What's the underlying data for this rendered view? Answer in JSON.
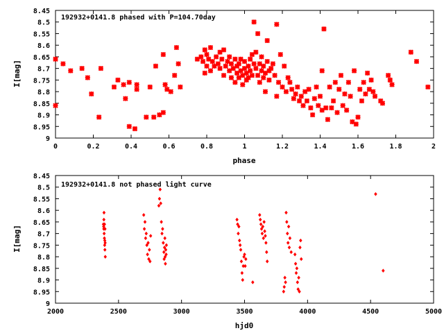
{
  "chart_data": [
    {
      "type": "scatter",
      "title": "192932+0141.8 phased with P=104.70day",
      "xlabel": "phase",
      "ylabel": "I[mag]",
      "xlim": [
        0,
        2
      ],
      "ylim": [
        9,
        8.45
      ],
      "x_ticks": [
        "0",
        "0.2",
        "0.4",
        "0.6",
        "0.8",
        "1",
        "1.2",
        "1.4",
        "1.6",
        "1.8",
        "2"
      ],
      "y_ticks": [
        "8.45",
        "8.5",
        "8.55",
        "8.6",
        "8.65",
        "8.7",
        "8.75",
        "8.8",
        "8.85",
        "8.9",
        "8.95",
        "9"
      ],
      "marker_color": "#ff0000",
      "grid": false,
      "series": [
        {
          "points": [
            [
              0.0,
              8.66
            ],
            [
              0.0,
              8.86
            ],
            [
              0.04,
              8.68
            ],
            [
              0.08,
              8.71
            ],
            [
              0.14,
              8.7
            ],
            [
              0.17,
              8.74
            ],
            [
              0.19,
              8.81
            ],
            [
              0.23,
              8.91
            ],
            [
              0.24,
              8.7
            ],
            [
              0.31,
              8.78
            ],
            [
              0.33,
              8.75
            ],
            [
              0.36,
              8.77
            ],
            [
              0.37,
              8.83
            ],
            [
              0.39,
              8.76
            ],
            [
              0.39,
              8.95
            ],
            [
              0.42,
              8.96
            ],
            [
              0.43,
              8.79
            ],
            [
              0.43,
              8.77
            ],
            [
              0.48,
              8.91
            ],
            [
              0.5,
              8.78
            ],
            [
              0.52,
              8.91
            ],
            [
              0.53,
              8.69
            ],
            [
              0.55,
              8.9
            ],
            [
              0.57,
              8.89
            ],
            [
              0.57,
              8.64
            ],
            [
              0.58,
              8.77
            ],
            [
              0.59,
              8.79
            ],
            [
              0.61,
              8.8
            ],
            [
              0.63,
              8.73
            ],
            [
              0.64,
              8.61
            ],
            [
              0.65,
              8.68
            ],
            [
              0.66,
              8.78
            ],
            [
              0.75,
              8.66
            ],
            [
              0.77,
              8.65
            ],
            [
              0.78,
              8.67
            ],
            [
              0.79,
              8.72
            ],
            [
              0.79,
              8.62
            ],
            [
              0.8,
              8.69
            ],
            [
              0.8,
              8.64
            ],
            [
              0.81,
              8.66
            ],
            [
              0.82,
              8.61
            ],
            [
              0.82,
              8.71
            ],
            [
              0.83,
              8.67
            ],
            [
              0.84,
              8.69
            ],
            [
              0.85,
              8.65
            ],
            [
              0.86,
              8.68
            ],
            [
              0.87,
              8.63
            ],
            [
              0.87,
              8.7
            ],
            [
              0.88,
              8.66
            ],
            [
              0.89,
              8.62
            ],
            [
              0.89,
              8.73
            ],
            [
              0.9,
              8.69
            ],
            [
              0.91,
              8.67
            ],
            [
              0.92,
              8.71
            ],
            [
              0.92,
              8.65
            ],
            [
              0.93,
              8.74
            ],
            [
              0.93,
              8.68
            ],
            [
              0.94,
              8.7
            ],
            [
              0.95,
              8.66
            ],
            [
              0.95,
              8.76
            ],
            [
              0.96,
              8.72
            ],
            [
              0.96,
              8.69
            ],
            [
              0.97,
              8.74
            ],
            [
              0.97,
              8.68
            ],
            [
              0.98,
              8.71
            ],
            [
              0.98,
              8.66
            ],
            [
              0.99,
              8.73
            ],
            [
              0.99,
              8.77
            ],
            [
              1.0,
              8.7
            ],
            [
              1.0,
              8.67
            ],
            [
              1.01,
              8.72
            ],
            [
              1.01,
              8.75
            ],
            [
              1.02,
              8.69
            ],
            [
              1.02,
              8.74
            ],
            [
              1.03,
              8.66
            ],
            [
              1.03,
              8.71
            ],
            [
              1.04,
              8.64
            ],
            [
              1.04,
              8.73
            ],
            [
              1.05,
              8.68
            ],
            [
              1.05,
              8.5
            ],
            [
              1.06,
              8.63
            ],
            [
              1.06,
              8.7
            ],
            [
              1.07,
              8.73
            ],
            [
              1.07,
              8.55
            ],
            [
              1.08,
              8.68
            ],
            [
              1.08,
              8.76
            ],
            [
              1.09,
              8.71
            ],
            [
              1.09,
              8.65
            ],
            [
              1.1,
              8.74
            ],
            [
              1.1,
              8.69
            ],
            [
              1.11,
              8.72
            ],
            [
              1.11,
              8.8
            ],
            [
              1.12,
              8.67
            ],
            [
              1.12,
              8.58
            ],
            [
              1.13,
              8.71
            ],
            [
              1.13,
              8.75
            ],
            [
              1.14,
              8.7
            ],
            [
              1.15,
              8.68
            ],
            [
              1.16,
              8.73
            ],
            [
              1.17,
              8.82
            ],
            [
              1.17,
              8.51
            ],
            [
              1.18,
              8.76
            ],
            [
              1.19,
              8.64
            ],
            [
              1.2,
              8.78
            ],
            [
              1.21,
              8.69
            ],
            [
              1.22,
              8.8
            ],
            [
              1.23,
              8.74
            ],
            [
              1.24,
              8.76
            ],
            [
              1.25,
              8.79
            ],
            [
              1.26,
              8.83
            ],
            [
              1.27,
              8.81
            ],
            [
              1.28,
              8.78
            ],
            [
              1.29,
              8.84
            ],
            [
              1.3,
              8.82
            ],
            [
              1.31,
              8.86
            ],
            [
              1.32,
              8.8
            ],
            [
              1.33,
              8.84
            ],
            [
              1.34,
              8.79
            ],
            [
              1.35,
              8.87
            ],
            [
              1.36,
              8.9
            ],
            [
              1.37,
              8.83
            ],
            [
              1.38,
              8.78
            ],
            [
              1.39,
              8.86
            ],
            [
              1.4,
              8.82
            ],
            [
              1.41,
              8.71
            ],
            [
              1.41,
              8.88
            ],
            [
              1.42,
              8.53
            ],
            [
              1.43,
              8.87
            ],
            [
              1.44,
              8.92
            ],
            [
              1.45,
              8.78
            ],
            [
              1.46,
              8.87
            ],
            [
              1.47,
              8.84
            ],
            [
              1.48,
              8.76
            ],
            [
              1.49,
              8.89
            ],
            [
              1.5,
              8.79
            ],
            [
              1.51,
              8.73
            ],
            [
              1.52,
              8.86
            ],
            [
              1.53,
              8.81
            ],
            [
              1.54,
              8.88
            ],
            [
              1.55,
              8.76
            ],
            [
              1.56,
              8.82
            ],
            [
              1.57,
              8.93
            ],
            [
              1.58,
              8.71
            ],
            [
              1.59,
              8.94
            ],
            [
              1.6,
              8.91
            ],
            [
              1.61,
              8.79
            ],
            [
              1.62,
              8.84
            ],
            [
              1.63,
              8.76
            ],
            [
              1.64,
              8.81
            ],
            [
              1.65,
              8.72
            ],
            [
              1.66,
              8.79
            ],
            [
              1.67,
              8.75
            ],
            [
              1.68,
              8.8
            ],
            [
              1.69,
              8.82
            ],
            [
              1.72,
              8.84
            ],
            [
              1.73,
              8.85
            ],
            [
              1.76,
              8.73
            ],
            [
              1.77,
              8.75
            ],
            [
              1.78,
              8.77
            ],
            [
              1.88,
              8.63
            ],
            [
              1.91,
              8.67
            ],
            [
              1.97,
              8.78
            ]
          ]
        }
      ]
    },
    {
      "type": "scatter",
      "title": "192932+0141.8 not phased light curve",
      "xlabel": "hjd0",
      "ylabel": "I[mag]",
      "xlim": [
        2000,
        5000
      ],
      "ylim": [
        9,
        8.45
      ],
      "x_ticks": [
        "2000",
        "2500",
        "3000",
        "3500",
        "4000",
        "4500",
        "5000"
      ],
      "y_ticks": [
        "8.45",
        "8.5",
        "8.55",
        "8.6",
        "8.65",
        "8.7",
        "8.75",
        "8.8",
        "8.85",
        "8.9",
        "8.95",
        "9"
      ],
      "marker_color": "#ff0000",
      "grid": false,
      "series": [
        {
          "points": [
            [
              2380,
              8.66
            ],
            [
              2382,
              8.67
            ],
            [
              2383,
              8.68
            ],
            [
              2384,
              8.64
            ],
            [
              2385,
              8.61
            ],
            [
              2386,
              8.7
            ],
            [
              2388,
              8.72
            ],
            [
              2389,
              8.66
            ],
            [
              2390,
              8.75
            ],
            [
              2391,
              8.73
            ],
            [
              2392,
              8.77
            ],
            [
              2393,
              8.68
            ],
            [
              2394,
              8.74
            ],
            [
              2395,
              8.8
            ],
            [
              2700,
              8.62
            ],
            [
              2705,
              8.68
            ],
            [
              2710,
              8.65
            ],
            [
              2715,
              8.72
            ],
            [
              2720,
              8.7
            ],
            [
              2725,
              8.75
            ],
            [
              2730,
              8.79
            ],
            [
              2735,
              8.74
            ],
            [
              2740,
              8.81
            ],
            [
              2745,
              8.77
            ],
            [
              2750,
              8.82
            ],
            [
              2755,
              8.71
            ],
            [
              2820,
              8.58
            ],
            [
              2825,
              8.55
            ],
            [
              2830,
              8.51
            ],
            [
              2835,
              8.57
            ],
            [
              2840,
              8.65
            ],
            [
              2845,
              8.7
            ],
            [
              2850,
              8.68
            ],
            [
              2855,
              8.74
            ],
            [
              2860,
              8.78
            ],
            [
              2862,
              8.81
            ],
            [
              2865,
              8.76
            ],
            [
              2868,
              8.72
            ],
            [
              2870,
              8.8
            ],
            [
              2872,
              8.83
            ],
            [
              2875,
              8.77
            ],
            [
              2878,
              8.79
            ],
            [
              2880,
              8.75
            ],
            [
              3440,
              8.64
            ],
            [
              3445,
              8.66
            ],
            [
              3450,
              8.7
            ],
            [
              3455,
              8.67
            ],
            [
              3460,
              8.73
            ],
            [
              3465,
              8.75
            ],
            [
              3470,
              8.77
            ],
            [
              3475,
              8.82
            ],
            [
              3480,
              8.87
            ],
            [
              3485,
              8.9
            ],
            [
              3490,
              8.84
            ],
            [
              3495,
              8.8
            ],
            [
              3500,
              8.79
            ],
            [
              3505,
              8.84
            ],
            [
              3510,
              8.81
            ],
            [
              3565,
              8.91
            ],
            [
              3620,
              8.62
            ],
            [
              3625,
              8.64
            ],
            [
              3630,
              8.66
            ],
            [
              3635,
              8.68
            ],
            [
              3640,
              8.7
            ],
            [
              3645,
              8.67
            ],
            [
              3650,
              8.72
            ],
            [
              3655,
              8.65
            ],
            [
              3660,
              8.69
            ],
            [
              3665,
              8.71
            ],
            [
              3670,
              8.74
            ],
            [
              3675,
              8.78
            ],
            [
              3680,
              8.82
            ],
            [
              3810,
              8.95
            ],
            [
              3815,
              8.93
            ],
            [
              3820,
              8.89
            ],
            [
              3825,
              8.91
            ],
            [
              3830,
              8.61
            ],
            [
              3835,
              8.65
            ],
            [
              3840,
              8.7
            ],
            [
              3845,
              8.74
            ],
            [
              3850,
              8.67
            ],
            [
              3855,
              8.76
            ],
            [
              3860,
              8.72
            ],
            [
              3870,
              8.78
            ],
            [
              3900,
              8.79
            ],
            [
              3905,
              8.83
            ],
            [
              3910,
              8.87
            ],
            [
              3915,
              8.85
            ],
            [
              3920,
              8.91
            ],
            [
              3925,
              8.94
            ],
            [
              3930,
              8.89
            ],
            [
              3935,
              8.95
            ],
            [
              3940,
              8.76
            ],
            [
              3945,
              8.73
            ],
            [
              3950,
              8.81
            ],
            [
              4540,
              8.53
            ],
            [
              4600,
              8.86
            ]
          ]
        }
      ]
    }
  ]
}
